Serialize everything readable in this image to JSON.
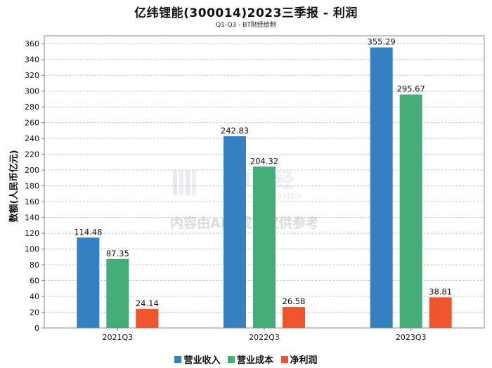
{
  "colors": {
    "revenue": "#3580c2",
    "cost": "#45ad78",
    "profit": "#f0542c",
    "grid": "#c8c8c8",
    "axis": "#888888"
  },
  "watermark": {
    "logo_text": "BT财经",
    "logo_sub": "BUSINESS TIMES",
    "notice": "内容由AI生成，仅供参考"
  },
  "chart_data": {
    "type": "bar",
    "title": "亿纬锂能(300014)2023三季报 - 利润",
    "subtitle": "Q1-Q3 - BT财经绘制",
    "xlabel": "",
    "ylabel": "数额(人民币亿元)",
    "ylim": [
      0,
      370
    ],
    "yticks": [
      0,
      20,
      40,
      60,
      80,
      100,
      120,
      140,
      160,
      180,
      200,
      220,
      240,
      260,
      280,
      300,
      320,
      340,
      360
    ],
    "categories": [
      "2021Q3",
      "2022Q3",
      "2023Q3"
    ],
    "series": [
      {
        "name": "营业收入",
        "color_key": "revenue",
        "values": [
          114.48,
          242.83,
          355.29
        ]
      },
      {
        "name": "营业成本",
        "color_key": "cost",
        "values": [
          87.35,
          204.32,
          295.67
        ]
      },
      {
        "name": "净利润",
        "color_key": "profit",
        "values": [
          24.14,
          26.58,
          38.81
        ]
      }
    ],
    "grid": true,
    "legend": "bottom-center"
  }
}
